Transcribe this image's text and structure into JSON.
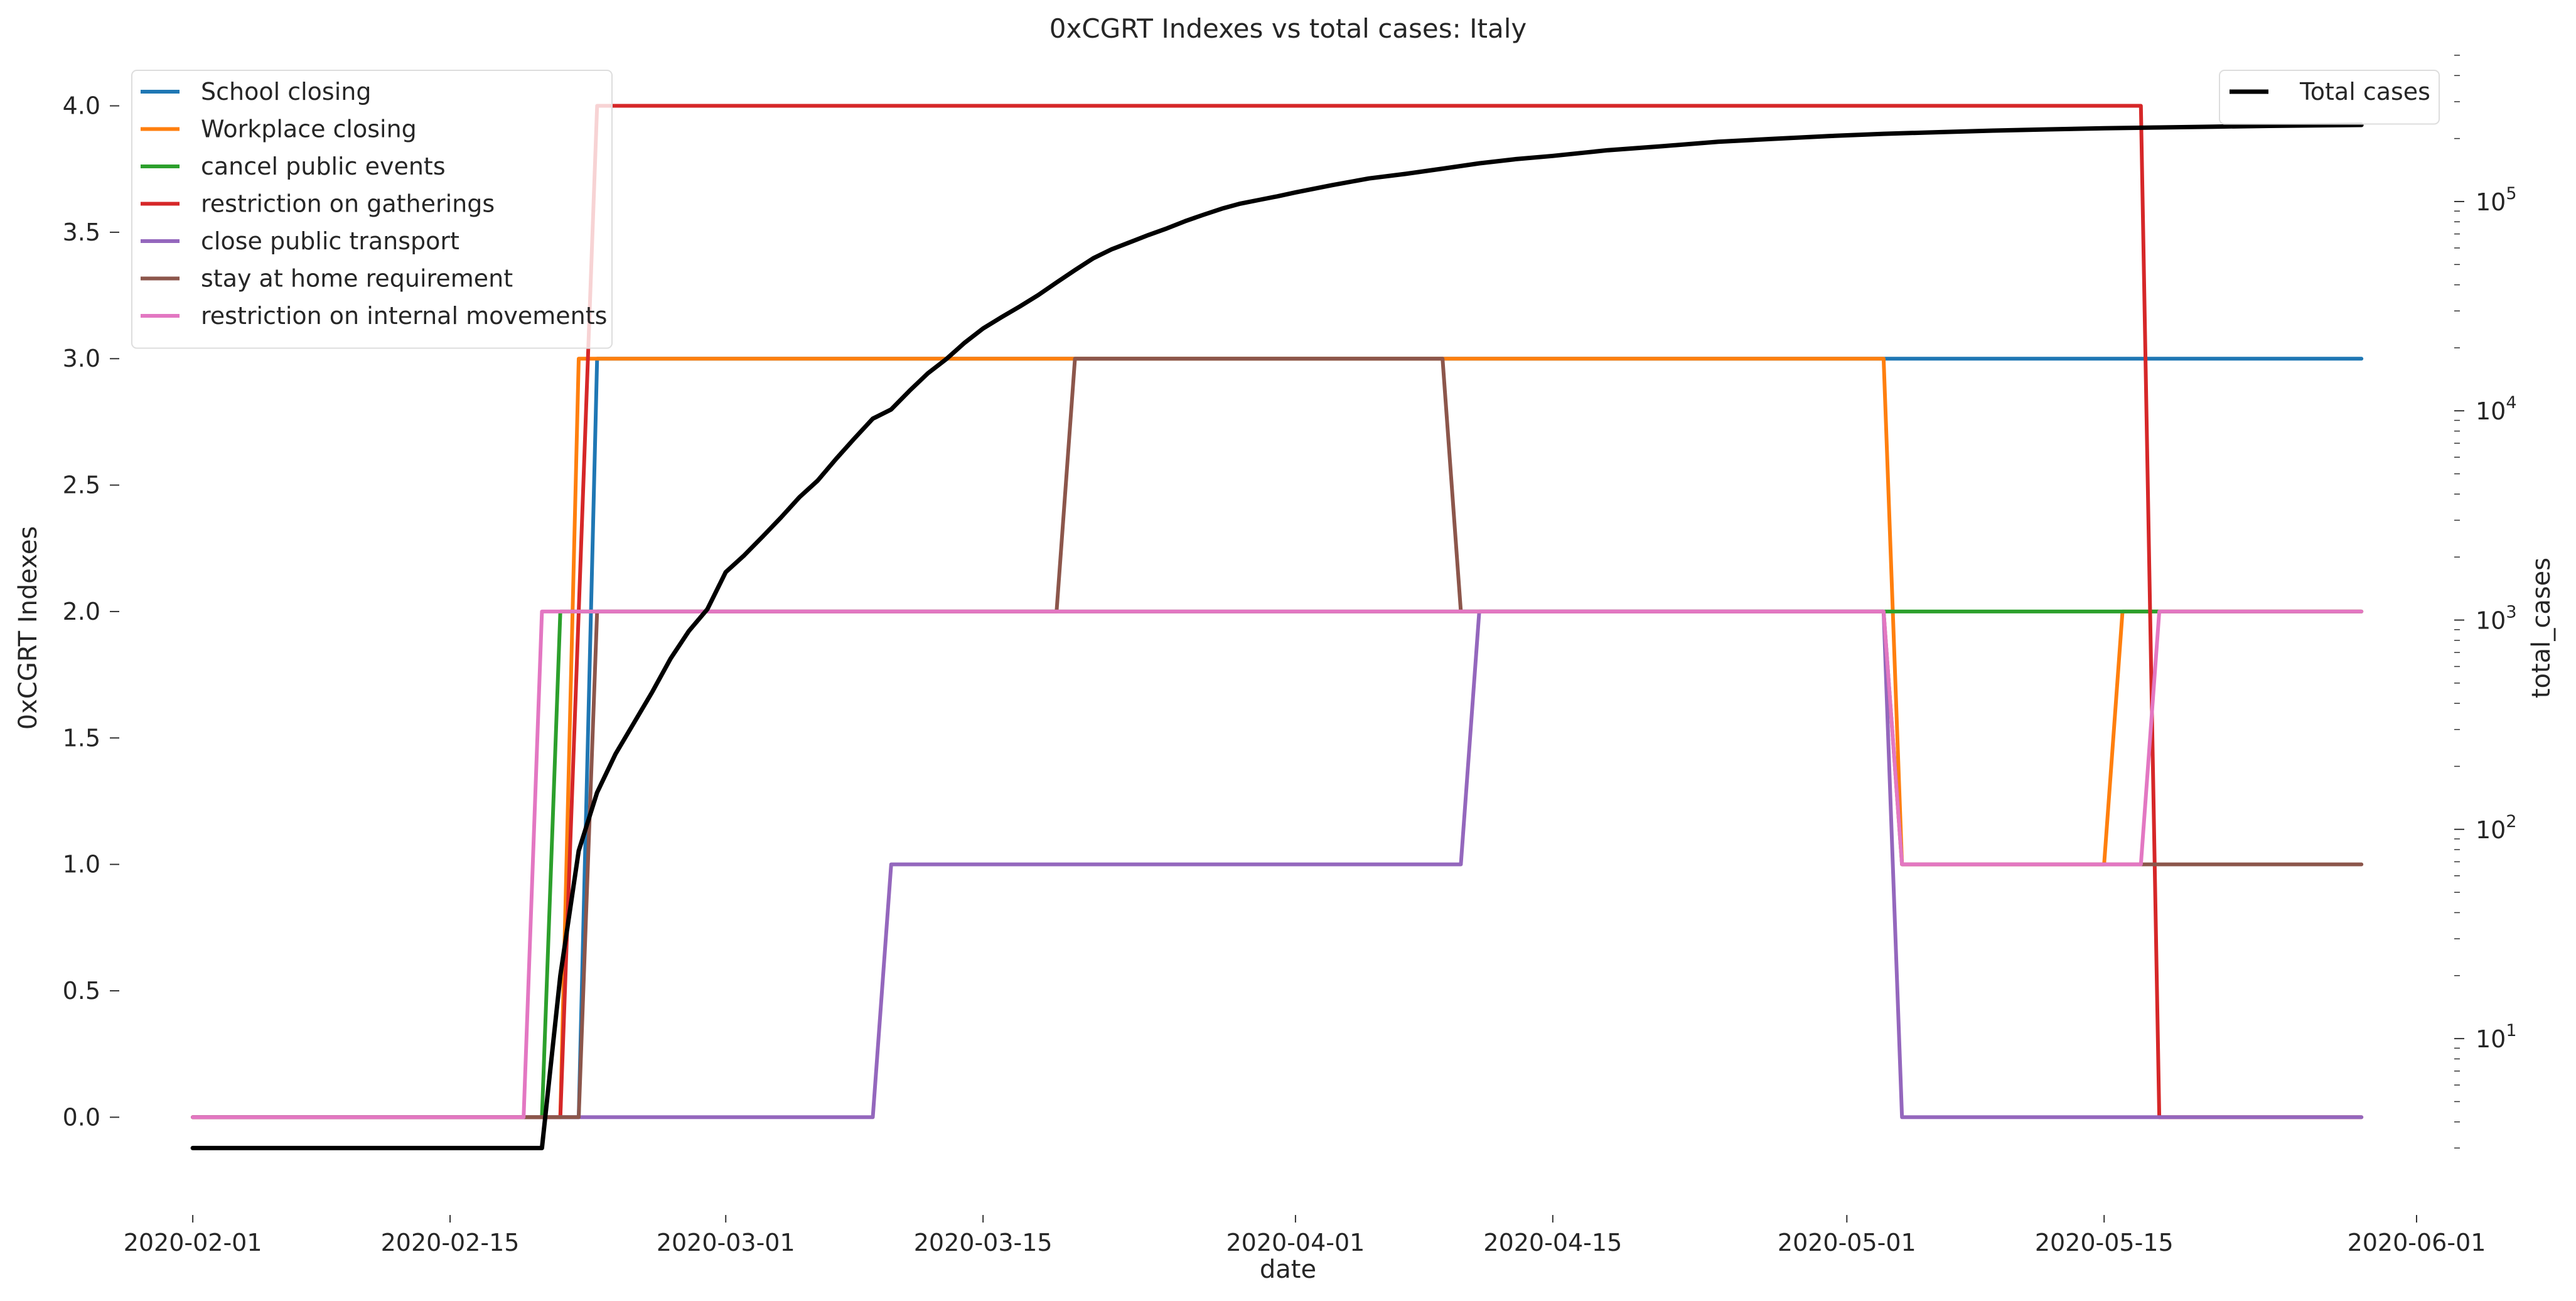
{
  "chart_data": {
    "type": "line",
    "title": "0xCGRT Indexes vs total cases:  Italy",
    "xlabel": "date",
    "ylabel": "0xCGRT Indexes",
    "y2label": "total_cases",
    "xlim": [
      "2020-01-28",
      "2020-06-01"
    ],
    "ylim": [
      -0.25,
      4.2
    ],
    "y2scale": "log",
    "y2lim": [
      2.1,
      500000
    ],
    "grid": false,
    "x_ticks": [
      "2020-02-01",
      "2020-02-15",
      "2020-03-01",
      "2020-03-15",
      "2020-04-01",
      "2020-04-15",
      "2020-05-01",
      "2020-05-15",
      "2020-06-01"
    ],
    "y_ticks": [
      "0.0",
      "0.5",
      "1.0",
      "1.5",
      "2.0",
      "2.5",
      "3.0",
      "3.5",
      "4.0"
    ],
    "y2_ticks": [
      {
        "value": 10,
        "label": "10",
        "exp": "1"
      },
      {
        "value": 100,
        "label": "10",
        "exp": "2"
      },
      {
        "value": 1000,
        "label": "10",
        "exp": "3"
      },
      {
        "value": 10000,
        "label": "10",
        "exp": "4"
      },
      {
        "value": 100000,
        "label": "10",
        "exp": "5"
      }
    ],
    "legend_left": {
      "placement": "top-left"
    },
    "legend_right": {
      "placement": "top-right"
    },
    "series": [
      {
        "name": "School closing",
        "color": "#1f77b4",
        "axis": "left",
        "points": [
          [
            "2020-02-01",
            0
          ],
          [
            "2020-02-22",
            0
          ],
          [
            "2020-02-23",
            3
          ],
          [
            "2020-05-29",
            3
          ]
        ]
      },
      {
        "name": "Workplace closing",
        "color": "#ff7f0e",
        "axis": "left",
        "points": [
          [
            "2020-02-01",
            0
          ],
          [
            "2020-02-21",
            0
          ],
          [
            "2020-02-22",
            3
          ],
          [
            "2020-05-03",
            3
          ],
          [
            "2020-05-04",
            1
          ],
          [
            "2020-05-15",
            1
          ],
          [
            "2020-05-16",
            2
          ],
          [
            "2020-05-29",
            2
          ]
        ]
      },
      {
        "name": "cancel public events",
        "color": "#2ca02c",
        "axis": "left",
        "points": [
          [
            "2020-02-01",
            0
          ],
          [
            "2020-02-20",
            0
          ],
          [
            "2020-02-21",
            2
          ],
          [
            "2020-05-29",
            2
          ]
        ]
      },
      {
        "name": "restriction on gatherings",
        "color": "#d62728",
        "axis": "left",
        "points": [
          [
            "2020-02-01",
            0
          ],
          [
            "2020-02-21",
            0
          ],
          [
            "2020-02-23",
            4
          ],
          [
            "2020-05-17",
            4
          ],
          [
            "2020-05-18",
            0
          ],
          [
            "2020-05-29",
            0
          ]
        ]
      },
      {
        "name": "close public transport",
        "color": "#9467bd",
        "axis": "left",
        "points": [
          [
            "2020-02-01",
            0
          ],
          [
            "2020-03-09",
            0
          ],
          [
            "2020-03-10",
            1
          ],
          [
            "2020-04-10",
            1
          ],
          [
            "2020-04-11",
            2
          ],
          [
            "2020-05-03",
            2
          ],
          [
            "2020-05-04",
            0
          ],
          [
            "2020-05-29",
            0
          ]
        ]
      },
      {
        "name": "stay at home requirement",
        "color": "#8c564b",
        "axis": "left",
        "points": [
          [
            "2020-02-01",
            0
          ],
          [
            "2020-02-22",
            0
          ],
          [
            "2020-02-23",
            2
          ],
          [
            "2020-03-19",
            2
          ],
          [
            "2020-03-20",
            3
          ],
          [
            "2020-04-09",
            3
          ],
          [
            "2020-04-10",
            2
          ],
          [
            "2020-05-03",
            2
          ],
          [
            "2020-05-04",
            1
          ],
          [
            "2020-05-29",
            1
          ]
        ]
      },
      {
        "name": "restriction on internal movements",
        "color": "#e377c2",
        "axis": "left",
        "points": [
          [
            "2020-02-01",
            0
          ],
          [
            "2020-02-19",
            0
          ],
          [
            "2020-02-20",
            2
          ],
          [
            "2020-05-03",
            2
          ],
          [
            "2020-05-04",
            1
          ],
          [
            "2020-05-17",
            1
          ],
          [
            "2020-05-18",
            2
          ],
          [
            "2020-05-29",
            2
          ]
        ]
      },
      {
        "name": "Total cases",
        "color": "#000000",
        "axis": "right",
        "points": [
          [
            "2020-02-01",
            3
          ],
          [
            "2020-02-20",
            3
          ],
          [
            "2020-02-21",
            20
          ],
          [
            "2020-02-22",
            79
          ],
          [
            "2020-02-23",
            150
          ],
          [
            "2020-02-24",
            229
          ],
          [
            "2020-02-25",
            322
          ],
          [
            "2020-02-26",
            453
          ],
          [
            "2020-02-27",
            655
          ],
          [
            "2020-02-28",
            888
          ],
          [
            "2020-02-29",
            1128
          ],
          [
            "2020-03-01",
            1694
          ],
          [
            "2020-03-02",
            2036
          ],
          [
            "2020-03-03",
            2502
          ],
          [
            "2020-03-04",
            3089
          ],
          [
            "2020-03-05",
            3858
          ],
          [
            "2020-03-06",
            4636
          ],
          [
            "2020-03-07",
            5883
          ],
          [
            "2020-03-08",
            7375
          ],
          [
            "2020-03-09",
            9172
          ],
          [
            "2020-03-10",
            10149
          ],
          [
            "2020-03-11",
            12462
          ],
          [
            "2020-03-12",
            15113
          ],
          [
            "2020-03-13",
            17660
          ],
          [
            "2020-03-14",
            21157
          ],
          [
            "2020-03-15",
            24747
          ],
          [
            "2020-03-16",
            27980
          ],
          [
            "2020-03-17",
            31506
          ],
          [
            "2020-03-18",
            35713
          ],
          [
            "2020-03-19",
            41035
          ],
          [
            "2020-03-20",
            47021
          ],
          [
            "2020-03-21",
            53578
          ],
          [
            "2020-03-22",
            59138
          ],
          [
            "2020-03-23",
            63927
          ],
          [
            "2020-03-24",
            69176
          ],
          [
            "2020-03-25",
            74386
          ],
          [
            "2020-03-26",
            80589
          ],
          [
            "2020-03-27",
            86498
          ],
          [
            "2020-03-28",
            92472
          ],
          [
            "2020-03-29",
            97689
          ],
          [
            "2020-03-30",
            101739
          ],
          [
            "2020-03-31",
            105792
          ],
          [
            "2020-04-01",
            110574
          ],
          [
            "2020-04-03",
            119827
          ],
          [
            "2020-04-05",
            128948
          ],
          [
            "2020-04-07",
            135586
          ],
          [
            "2020-04-09",
            143626
          ],
          [
            "2020-04-11",
            152271
          ],
          [
            "2020-04-13",
            159516
          ],
          [
            "2020-04-15",
            165155
          ],
          [
            "2020-04-18",
            175925
          ],
          [
            "2020-04-21",
            183957
          ],
          [
            "2020-04-24",
            192994
          ],
          [
            "2020-04-27",
            199414
          ],
          [
            "2020-04-30",
            205463
          ],
          [
            "2020-05-03",
            210717
          ],
          [
            "2020-05-06",
            214457
          ],
          [
            "2020-05-09",
            218268
          ],
          [
            "2020-05-12",
            221216
          ],
          [
            "2020-05-15",
            223885
          ],
          [
            "2020-05-18",
            225886
          ],
          [
            "2020-05-21",
            228006
          ],
          [
            "2020-05-24",
            229858
          ],
          [
            "2020-05-29",
            232248
          ]
        ]
      }
    ]
  }
}
